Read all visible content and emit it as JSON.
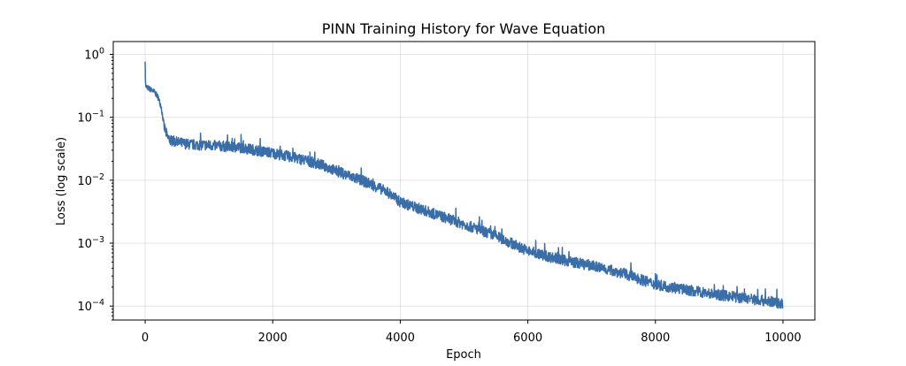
{
  "chart_data": {
    "type": "line",
    "title": "PINN Training History for Wave Equation",
    "xlabel": "Epoch",
    "ylabel": "Loss (log scale)",
    "xlim": [
      -500,
      10500
    ],
    "ylim": [
      6e-05,
      1.6
    ],
    "yscale": "log",
    "grid": true,
    "x_ticks": [
      {
        "value": 0,
        "label": "0"
      },
      {
        "value": 2000,
        "label": "2000"
      },
      {
        "value": 4000,
        "label": "4000"
      },
      {
        "value": 6000,
        "label": "6000"
      },
      {
        "value": 8000,
        "label": "8000"
      },
      {
        "value": 10000,
        "label": "10000"
      }
    ],
    "y_ticks": [
      {
        "value": 1,
        "base": "10",
        "exp": "0"
      },
      {
        "value": 0.1,
        "base": "10",
        "exp": "−1"
      },
      {
        "value": 0.01,
        "base": "10",
        "exp": "−2"
      },
      {
        "value": 0.001,
        "base": "10",
        "exp": "−3"
      },
      {
        "value": 0.0001,
        "base": "10",
        "exp": "−4"
      }
    ],
    "series": [
      {
        "name": "Loss",
        "color": "#3a6ea8",
        "noise_band": 0.085,
        "x": [
          0,
          5,
          20,
          50,
          100,
          150,
          200,
          250,
          300,
          350,
          400,
          500,
          700,
          1000,
          1500,
          2000,
          2500,
          2800,
          3000,
          3500,
          3800,
          4000,
          4500,
          5000,
          5500,
          6000,
          6500,
          7000,
          7500,
          8000,
          8500,
          9000,
          9500,
          10000
        ],
        "y": [
          0.85,
          0.33,
          0.3,
          0.29,
          0.27,
          0.25,
          0.21,
          0.15,
          0.07,
          0.048,
          0.043,
          0.04,
          0.037,
          0.036,
          0.033,
          0.027,
          0.021,
          0.017,
          0.014,
          0.009,
          0.0065,
          0.0045,
          0.003,
          0.002,
          0.0013,
          0.00075,
          0.00055,
          0.00044,
          0.00033,
          0.00022,
          0.00018,
          0.00015,
          0.00013,
          0.00011
        ]
      }
    ]
  }
}
